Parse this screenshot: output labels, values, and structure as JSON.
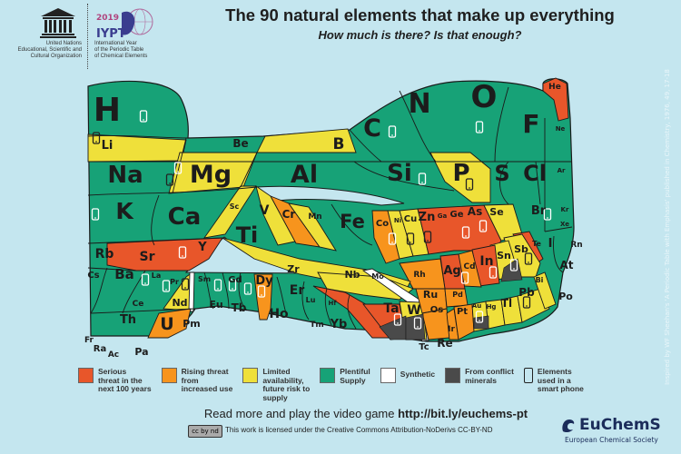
{
  "header": {
    "title": "The 90 natural elements that make up everything",
    "subtitle": "How much is there? Is that enough?",
    "unesco": {
      "logo_text": "UNESCO",
      "lines": [
        "United Nations",
        "Educational, Scientific and",
        "Cultural Organization"
      ]
    },
    "iypt": {
      "year": "2019",
      "logo_text": "IYPT",
      "lines": [
        "International Year",
        "of the Periodic Table",
        "of Chemical Elements"
      ]
    }
  },
  "colors": {
    "serious": "#e8562a",
    "rising": "#f7941d",
    "limited": "#efe03a",
    "plentiful": "#17a277",
    "synthetic": "#ffffff",
    "conflict": "#4a4a4a",
    "background": "#c4e6ef"
  },
  "elements": [
    {
      "symbol": "H",
      "status": "plentiful",
      "phone": true
    },
    {
      "symbol": "He",
      "status": "serious",
      "phone": false
    },
    {
      "symbol": "Li",
      "status": "limited",
      "phone": true
    },
    {
      "symbol": "Be",
      "status": "plentiful",
      "phone": false
    },
    {
      "symbol": "B",
      "status": "limited",
      "phone": false
    },
    {
      "symbol": "C",
      "status": "plentiful",
      "phone": true
    },
    {
      "symbol": "N",
      "status": "plentiful",
      "phone": false
    },
    {
      "symbol": "O",
      "status": "plentiful",
      "phone": true
    },
    {
      "symbol": "F",
      "status": "plentiful",
      "phone": false
    },
    {
      "symbol": "Ne",
      "status": "plentiful",
      "phone": false
    },
    {
      "symbol": "Na",
      "status": "plentiful",
      "phone": false
    },
    {
      "symbol": "Mg",
      "status": "limited",
      "phone": true
    },
    {
      "symbol": "Al",
      "status": "plentiful",
      "phone": true
    },
    {
      "symbol": "Si",
      "status": "plentiful",
      "phone": true
    },
    {
      "symbol": "P",
      "status": "limited",
      "phone": true
    },
    {
      "symbol": "S",
      "status": "plentiful",
      "phone": false
    },
    {
      "symbol": "Cl",
      "status": "plentiful",
      "phone": false
    },
    {
      "symbol": "Ar",
      "status": "plentiful",
      "phone": false
    },
    {
      "symbol": "K",
      "status": "plentiful",
      "phone": true
    },
    {
      "symbol": "Ca",
      "status": "plentiful",
      "phone": false
    },
    {
      "symbol": "Sc",
      "status": "limited",
      "phone": false
    },
    {
      "symbol": "Ti",
      "status": "plentiful",
      "phone": false
    },
    {
      "symbol": "V",
      "status": "limited",
      "phone": false
    },
    {
      "symbol": "Cr",
      "status": "rising",
      "phone": false
    },
    {
      "symbol": "Mn",
      "status": "limited",
      "phone": false
    },
    {
      "symbol": "Fe",
      "status": "plentiful",
      "phone": false
    },
    {
      "symbol": "Co",
      "status": "rising",
      "phone": true
    },
    {
      "symbol": "Ni",
      "status": "limited",
      "phone": true
    },
    {
      "symbol": "Cu",
      "status": "limited",
      "phone": true
    },
    {
      "symbol": "Zn",
      "status": "serious",
      "phone": false
    },
    {
      "symbol": "Ga",
      "status": "serious",
      "phone": true
    },
    {
      "symbol": "Ge",
      "status": "serious",
      "phone": false
    },
    {
      "symbol": "As",
      "status": "serious",
      "phone": true
    },
    {
      "symbol": "Se",
      "status": "limited",
      "phone": false
    },
    {
      "symbol": "Br",
      "status": "plentiful",
      "phone": true
    },
    {
      "symbol": "Kr",
      "status": "plentiful",
      "phone": false
    },
    {
      "symbol": "Rb",
      "status": "plentiful",
      "phone": false
    },
    {
      "symbol": "Sr",
      "status": "serious",
      "phone": false
    },
    {
      "symbol": "Y",
      "status": "serious",
      "phone": true
    },
    {
      "symbol": "Zr",
      "status": "limited",
      "phone": false
    },
    {
      "symbol": "Nb",
      "status": "limited",
      "phone": false
    },
    {
      "symbol": "Mo",
      "status": "limited",
      "phone": false
    },
    {
      "symbol": "Tc",
      "status": "synthetic",
      "phone": false
    },
    {
      "symbol": "Ru",
      "status": "rising",
      "phone": false
    },
    {
      "symbol": "Rh",
      "status": "rising",
      "phone": false
    },
    {
      "symbol": "Pd",
      "status": "rising",
      "phone": false
    },
    {
      "symbol": "Ag",
      "status": "serious",
      "phone": true
    },
    {
      "symbol": "Cd",
      "status": "rising",
      "phone": false
    },
    {
      "symbol": "In",
      "status": "serious",
      "phone": true
    },
    {
      "symbol": "Sn",
      "status": "limited",
      "phone": true,
      "conflict": true
    },
    {
      "symbol": "Sb",
      "status": "limited",
      "phone": true
    },
    {
      "symbol": "Te",
      "status": "serious",
      "phone": false
    },
    {
      "symbol": "I",
      "status": "plentiful",
      "phone": false
    },
    {
      "symbol": "Xe",
      "status": "plentiful",
      "phone": false
    },
    {
      "symbol": "Cs",
      "status": "plentiful",
      "phone": false
    },
    {
      "symbol": "Ba",
      "status": "plentiful",
      "phone": true
    },
    {
      "symbol": "La",
      "status": "plentiful",
      "phone": false
    },
    {
      "symbol": "Ce",
      "status": "plentiful",
      "phone": false
    },
    {
      "symbol": "Pr",
      "status": "plentiful",
      "phone": true
    },
    {
      "symbol": "Nd",
      "status": "limited",
      "phone": true
    },
    {
      "symbol": "Pm",
      "status": "synthetic",
      "phone": false
    },
    {
      "symbol": "Sm",
      "status": "plentiful",
      "phone": false
    },
    {
      "symbol": "Eu",
      "status": "plentiful",
      "phone": true
    },
    {
      "symbol": "Gd",
      "status": "plentiful",
      "phone": true
    },
    {
      "symbol": "Tb",
      "status": "plentiful",
      "phone": true
    },
    {
      "symbol": "Dy",
      "status": "rising",
      "phone": true
    },
    {
      "symbol": "Ho",
      "status": "plentiful",
      "phone": false
    },
    {
      "symbol": "Er",
      "status": "plentiful",
      "phone": false
    },
    {
      "symbol": "Tm",
      "status": "plentiful",
      "phone": false
    },
    {
      "symbol": "Yb",
      "status": "plentiful",
      "phone": false
    },
    {
      "symbol": "Lu",
      "status": "plentiful",
      "phone": false
    },
    {
      "symbol": "Hf",
      "status": "serious",
      "phone": false
    },
    {
      "symbol": "Ta",
      "status": "serious",
      "phone": true,
      "conflict": true
    },
    {
      "symbol": "W",
      "status": "limited",
      "phone": true,
      "conflict": true
    },
    {
      "symbol": "Re",
      "status": "plentiful",
      "phone": false
    },
    {
      "symbol": "Os",
      "status": "rising",
      "phone": false
    },
    {
      "symbol": "Ir",
      "status": "rising",
      "phone": false
    },
    {
      "symbol": "Pt",
      "status": "rising",
      "phone": false
    },
    {
      "symbol": "Au",
      "status": "limited",
      "phone": true,
      "conflict": true
    },
    {
      "symbol": "Hg",
      "status": "limited",
      "phone": false
    },
    {
      "symbol": "Tl",
      "status": "limited",
      "phone": false
    },
    {
      "symbol": "Pb",
      "status": "limited",
      "phone": true
    },
    {
      "symbol": "Bi",
      "status": "limited",
      "phone": false
    },
    {
      "symbol": "Po",
      "status": "plentiful",
      "phone": false
    },
    {
      "symbol": "At",
      "status": "plentiful",
      "phone": false
    },
    {
      "symbol": "Rn",
      "status": "plentiful",
      "phone": false
    },
    {
      "symbol": "Fr",
      "status": "plentiful",
      "phone": false
    },
    {
      "symbol": "Ra",
      "status": "plentiful",
      "phone": false
    },
    {
      "symbol": "Ac",
      "status": "plentiful",
      "phone": false
    },
    {
      "symbol": "Th",
      "status": "plentiful",
      "phone": false
    },
    {
      "symbol": "Pa",
      "status": "plentiful",
      "phone": false
    },
    {
      "symbol": "U",
      "status": "rising",
      "phone": false
    }
  ],
  "legend": [
    {
      "key": "serious",
      "label": "Serious\nthreat in the\nnext 100 years"
    },
    {
      "key": "rising",
      "label": "Rising threat\nfrom\nincreased use"
    },
    {
      "key": "limited",
      "label": "Limited\navailability,\nfuture risk to\nsupply"
    },
    {
      "key": "plentiful",
      "label": "Plentiful\nSupply"
    },
    {
      "key": "synthetic",
      "label": "Synthetic"
    },
    {
      "key": "conflict",
      "label": "From conflict\nminerals"
    },
    {
      "key": "phone",
      "icon": "smartphone-icon",
      "label": "Elements\nused in a\nsmart phone"
    }
  ],
  "footer": {
    "readmore_prefix": "Read more and play the video game ",
    "readmore_url": "http://bit.ly/euchems-pt",
    "cc_badge": "cc by nd",
    "license": "This work is licensed under the Creative Commons Attribution-NoDerivs CC-BY-ND",
    "euchems_name": "EuChemS",
    "euchems_sub": "European Chemical Society"
  },
  "side_note": "Inspired by WF Sheehan's 'A Periodic Table with Emphasis' published in Chemistry, 1976, 49, 17-18"
}
